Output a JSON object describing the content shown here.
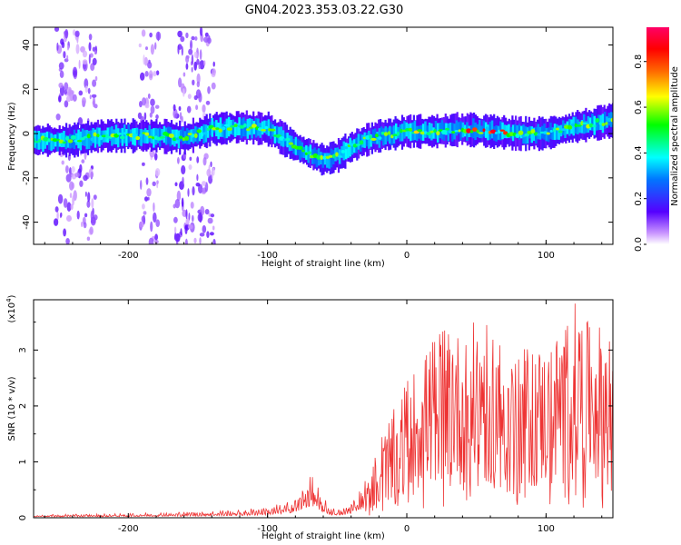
{
  "title": "GN04.2023.353.03.22.G30",
  "chart_data": [
    {
      "type": "heatmap",
      "name": "spectrogram",
      "xlabel": "Height of straight line (km)",
      "ylabel": "Frequency (Hz)",
      "xlim": [
        -268,
        148
      ],
      "ylim": [
        -50,
        48
      ],
      "xticks": [
        -200,
        -100,
        0,
        100
      ],
      "yticks": [
        -40,
        -20,
        0,
        20,
        40
      ],
      "colorbar": {
        "label": "Normalized spectral amplitude",
        "range": [
          0.0,
          0.95
        ],
        "ticks": [
          0.0,
          0.2,
          0.4,
          0.6,
          0.8
        ]
      },
      "ridge_center_hz": {
        "x": [
          -268,
          -240,
          -220,
          -200,
          -180,
          -160,
          -140,
          -120,
          -100,
          -90,
          -80,
          -70,
          -60,
          -50,
          -40,
          -30,
          -20,
          -10,
          0,
          20,
          40,
          60,
          80,
          100,
          120,
          148
        ],
        "y": [
          -3,
          -3,
          -1,
          -1,
          -1,
          -2,
          2,
          3,
          2,
          -2,
          -6,
          -9,
          -12,
          -10,
          -6,
          -3,
          -1,
          0,
          1,
          1,
          2,
          1,
          0,
          0,
          3,
          6
        ]
      },
      "vertical_streaks_km": [
        -245,
        -230,
        -185,
        -160,
        -145
      ]
    },
    {
      "type": "line",
      "name": "snr",
      "xlabel": "Height of straight line (km)",
      "ylabel": "SNR (10 * v/v)",
      "yscale_label": "(x10",
      "yscale_exp": "4",
      "yscale_close": ")",
      "xlim": [
        -268,
        148
      ],
      "ylim": [
        0,
        3.9
      ],
      "xticks": [
        -200,
        -100,
        0,
        100
      ],
      "yticks": [
        0,
        1,
        2,
        3
      ],
      "color": "#ee3333",
      "envelope": {
        "x": [
          -268,
          -200,
          -150,
          -120,
          -100,
          -85,
          -75,
          -68,
          -62,
          -55,
          -48,
          -40,
          -30,
          -25,
          -20,
          -15,
          -10,
          -5,
          0,
          10,
          20,
          30,
          40,
          50,
          60,
          70,
          80,
          90,
          100,
          110,
          120,
          130,
          148
        ],
        "y": [
          0.06,
          0.08,
          0.12,
          0.15,
          0.2,
          0.3,
          0.55,
          0.85,
          0.45,
          0.2,
          0.15,
          0.3,
          0.7,
          0.9,
          1.4,
          1.7,
          1.9,
          2.2,
          2.5,
          2.8,
          3.3,
          3.8,
          3.1,
          3.6,
          3.4,
          3.2,
          2.9,
          3.2,
          3.0,
          3.4,
          3.9,
          3.5,
          3.4
        ]
      }
    }
  ]
}
